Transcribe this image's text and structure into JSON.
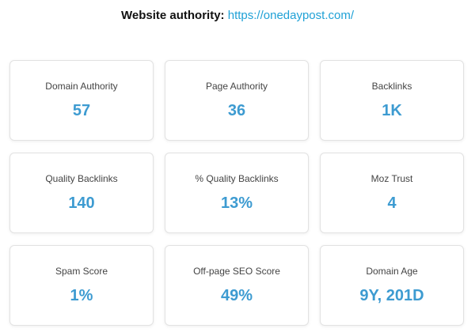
{
  "header": {
    "heading": "Website authority:",
    "url": "https://onedaypost.com/"
  },
  "metrics": [
    {
      "label": "Domain Authority",
      "value": "57"
    },
    {
      "label": "Page Authority",
      "value": "36"
    },
    {
      "label": "Backlinks",
      "value": "1K"
    },
    {
      "label": "Quality Backlinks",
      "value": "140"
    },
    {
      "label": "% Quality Backlinks",
      "value": "13%"
    },
    {
      "label": "Moz Trust",
      "value": "4"
    },
    {
      "label": "Spam Score",
      "value": "1%"
    },
    {
      "label": "Off-page SEO Score",
      "value": "49%"
    },
    {
      "label": "Domain Age",
      "value": "9Y, 201D"
    }
  ],
  "colors": {
    "accent": "#3d9bd1",
    "link": "#1fa1d6"
  }
}
